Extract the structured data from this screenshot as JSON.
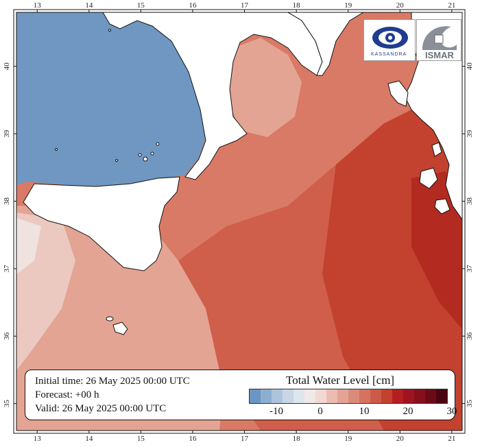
{
  "map": {
    "lon_ticks": [
      "13",
      "14",
      "15",
      "16",
      "17",
      "18",
      "19",
      "20",
      "21"
    ],
    "lat_ticks": [
      "40",
      "39",
      "38",
      "37",
      "36",
      "35"
    ],
    "lon_range": [
      12.6,
      21.2
    ],
    "lat_range": [
      34.6,
      40.8
    ]
  },
  "info": {
    "initial_time": "Initial time: 26 May 2025 00:00 UTC",
    "forecast": "Forecast: +00 h",
    "valid": "Valid: 26 May 2025 00:00 UTC"
  },
  "legend": {
    "title": "Total Water Level [cm]",
    "tick_labels": [
      "-10",
      "0",
      "10",
      "20",
      "30"
    ],
    "colors": [
      "#6b95c2",
      "#8eaed0",
      "#aec4dc",
      "#c8d6e6",
      "#dde5ee",
      "#efe9e9",
      "#f2d8d3",
      "#ebbcb1",
      "#e3a495",
      "#db8b79",
      "#d4735f",
      "#cb5b47",
      "#c2412f",
      "#b51f22",
      "#9e1420",
      "#860f1c",
      "#6b0b16",
      "#4a0610"
    ]
  },
  "logos": {
    "left_text": "KASSANDRA",
    "right_text": "ISMAR"
  },
  "colors": {
    "sea_blue": "#6f97c2",
    "sea_red_light": "#e09c8c",
    "sea_red_mid": "#d36a57",
    "sea_red_dark": "#c44a37",
    "sea_red_deep": "#b52e22",
    "land": "#ffffff"
  }
}
